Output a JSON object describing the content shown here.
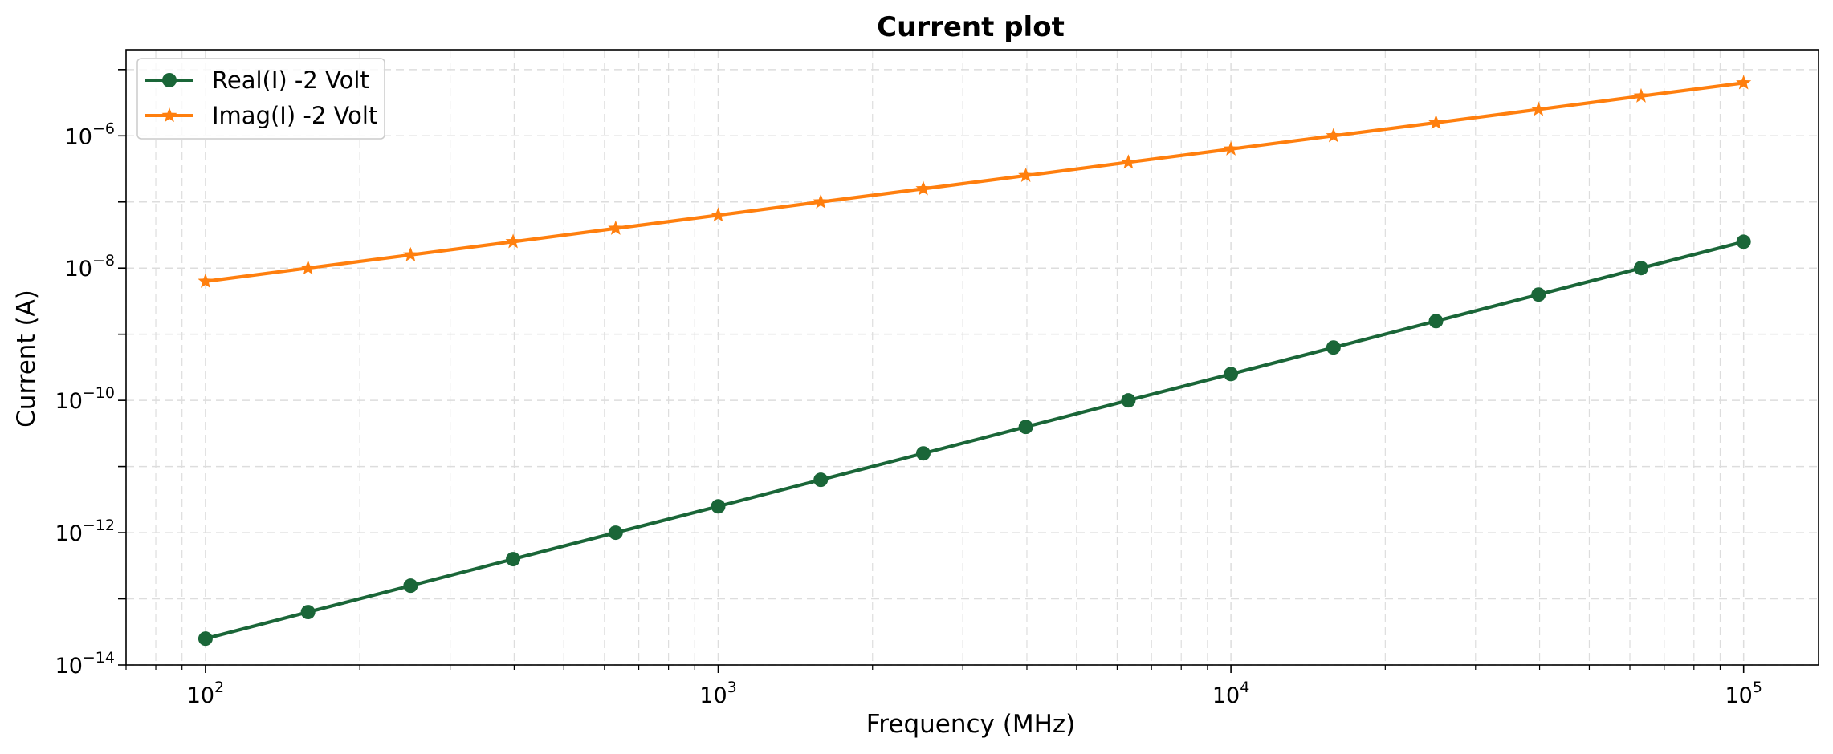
{
  "chart_data": {
    "type": "line",
    "title": "Current plot",
    "xlabel": "Frequency (MHz)",
    "ylabel": "Current (A)",
    "xscale": "log",
    "yscale": "log",
    "xlim": [
      70,
      140000
    ],
    "ylim": [
      1e-14,
      2e-05
    ],
    "grid": true,
    "legend_position": "top-left",
    "x_ticks": [
      {
        "value": 100,
        "base": "10",
        "exp": "2"
      },
      {
        "value": 1000,
        "base": "10",
        "exp": "3"
      },
      {
        "value": 10000,
        "base": "10",
        "exp": "4"
      },
      {
        "value": 100000,
        "base": "10",
        "exp": "5"
      }
    ],
    "y_ticks": [
      {
        "value": 1e-14,
        "base": "10",
        "exp": "−14"
      },
      {
        "value": 1e-12,
        "base": "10",
        "exp": "−12"
      },
      {
        "value": 1e-10,
        "base": "10",
        "exp": "−10"
      },
      {
        "value": 1e-08,
        "base": "10",
        "exp": "−8"
      },
      {
        "value": 1e-06,
        "base": "10",
        "exp": "−6"
      }
    ],
    "x": [
      100,
      158.5,
      251.2,
      398.1,
      631,
      1000,
      1585,
      2512,
      3981,
      6310,
      10000,
      15850,
      25120,
      39810,
      63100,
      100000
    ],
    "series": [
      {
        "name": "Real(I) -2 Volt",
        "color": "#1a6638",
        "marker": "circle",
        "values": [
          2.5e-14,
          6.3e-14,
          1.58e-13,
          3.98e-13,
          1e-12,
          2.5e-12,
          6.3e-12,
          1.58e-11,
          3.98e-11,
          1e-10,
          2.5e-10,
          6.3e-10,
          1.58e-09,
          3.98e-09,
          1e-08,
          2.5e-08
        ]
      },
      {
        "name": "Imag(I) -2 Volt",
        "color": "#ff7f0e",
        "marker": "star",
        "values": [
          6.3e-09,
          1e-08,
          1.58e-08,
          2.5e-08,
          3.98e-08,
          6.3e-08,
          1e-07,
          1.58e-07,
          2.5e-07,
          3.98e-07,
          6.3e-07,
          1e-06,
          1.58e-06,
          2.5e-06,
          3.98e-06,
          6.3e-06
        ]
      }
    ]
  }
}
